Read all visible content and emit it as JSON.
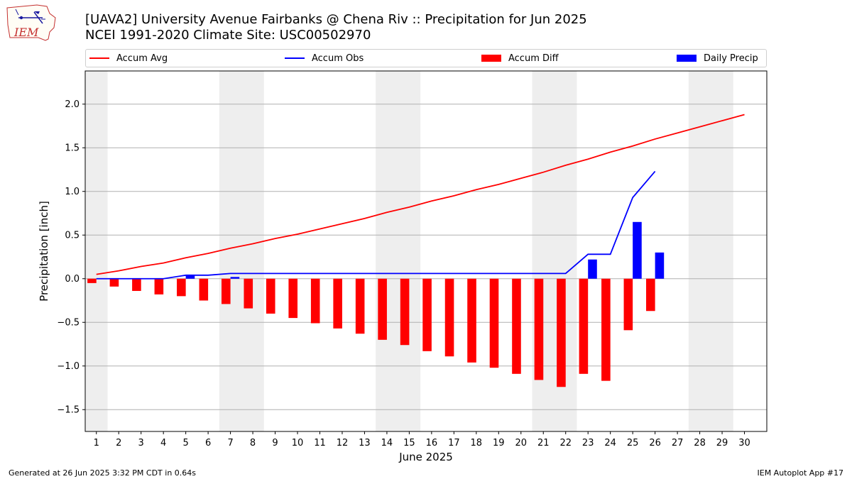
{
  "header": {
    "title_line1": "[UAVA2] University Avenue Fairbanks @ Chena Riv :: Precipitation for Jun 2025",
    "title_line2": "NCEI 1991-2020 Climate Site: USC00502970"
  },
  "logo": {
    "text": "IEM"
  },
  "legend": {
    "items": [
      {
        "label": "Accum Avg",
        "kind": "line",
        "color": "#ff0000"
      },
      {
        "label": "Accum Obs",
        "kind": "line",
        "color": "#0000ff"
      },
      {
        "label": "Accum Diff",
        "kind": "box",
        "color": "#ff0000"
      },
      {
        "label": "Daily Precip",
        "kind": "box",
        "color": "#0000ff"
      }
    ]
  },
  "footer": {
    "left": "Generated at 26 Jun 2025 3:32 PM CDT in 0.64s",
    "right": "IEM Autoplot App #17"
  },
  "chart_data": {
    "type": "bar",
    "xlabel": "June 2025",
    "ylabel": "Precipitation [inch]",
    "categories": [
      "1",
      "2",
      "3",
      "4",
      "5",
      "6",
      "7",
      "8",
      "9",
      "10",
      "11",
      "12",
      "13",
      "14",
      "15",
      "16",
      "17",
      "18",
      "19",
      "20",
      "21",
      "22",
      "23",
      "24",
      "25",
      "26",
      "27",
      "28",
      "29",
      "30"
    ],
    "ylim": [
      -1.75,
      2.38
    ],
    "yticks": [
      -1.5,
      -1.0,
      -0.5,
      0.0,
      0.5,
      1.0,
      1.5,
      2.0
    ],
    "ytick_labels": [
      "−1.5",
      "−1.0",
      "−0.5",
      "0.0",
      "0.5",
      "1.0",
      "1.5",
      "2.0"
    ],
    "grid": "horizontal",
    "weekend_shading": [
      [
        1,
        1
      ],
      [
        7,
        8
      ],
      [
        14,
        15
      ],
      [
        21,
        22
      ],
      [
        28,
        29
      ]
    ],
    "series": [
      {
        "name": "Accum Avg",
        "type": "line",
        "color": "#ff0000",
        "x": [
          1,
          2,
          3,
          4,
          5,
          6,
          7,
          8,
          9,
          10,
          11,
          12,
          13,
          14,
          15,
          16,
          17,
          18,
          19,
          20,
          21,
          22,
          23,
          24,
          25,
          26,
          27,
          28,
          29,
          30
        ],
        "values": [
          0.05,
          0.09,
          0.14,
          0.18,
          0.24,
          0.29,
          0.35,
          0.4,
          0.46,
          0.51,
          0.57,
          0.63,
          0.69,
          0.76,
          0.82,
          0.89,
          0.95,
          1.02,
          1.08,
          1.15,
          1.22,
          1.3,
          1.37,
          1.45,
          1.52,
          1.6,
          1.67,
          1.74,
          1.81,
          1.88
        ]
      },
      {
        "name": "Accum Obs",
        "type": "line",
        "color": "#0000ff",
        "x": [
          1,
          2,
          3,
          4,
          5,
          6,
          7,
          8,
          9,
          10,
          11,
          12,
          13,
          14,
          15,
          16,
          17,
          18,
          19,
          20,
          21,
          22,
          23,
          24,
          25,
          26
        ],
        "values": [
          0.0,
          0.0,
          0.0,
          0.0,
          0.04,
          0.04,
          0.06,
          0.06,
          0.06,
          0.06,
          0.06,
          0.06,
          0.06,
          0.06,
          0.06,
          0.06,
          0.06,
          0.06,
          0.06,
          0.06,
          0.06,
          0.06,
          0.28,
          0.28,
          0.93,
          1.23
        ]
      },
      {
        "name": "Accum Diff",
        "type": "bar",
        "color": "#ff0000",
        "x": [
          1,
          2,
          3,
          4,
          5,
          6,
          7,
          8,
          9,
          10,
          11,
          12,
          13,
          14,
          15,
          16,
          17,
          18,
          19,
          20,
          21,
          22,
          23,
          24,
          25,
          26
        ],
        "values": [
          -0.05,
          -0.09,
          -0.14,
          -0.18,
          -0.2,
          -0.25,
          -0.29,
          -0.34,
          -0.4,
          -0.45,
          -0.51,
          -0.57,
          -0.63,
          -0.7,
          -0.76,
          -0.83,
          -0.89,
          -0.96,
          -1.02,
          -1.09,
          -1.16,
          -1.24,
          -1.09,
          -1.17,
          -0.59,
          -0.37
        ]
      },
      {
        "name": "Daily Precip",
        "type": "bar",
        "color": "#0000ff",
        "x": [
          1,
          2,
          3,
          4,
          5,
          6,
          7,
          8,
          9,
          10,
          11,
          12,
          13,
          14,
          15,
          16,
          17,
          18,
          19,
          20,
          21,
          22,
          23,
          24,
          25,
          26
        ],
        "values": [
          0,
          0,
          0,
          0,
          0.04,
          0,
          0.02,
          0,
          0,
          0,
          0,
          0,
          0,
          0,
          0,
          0,
          0,
          0,
          0,
          0,
          0,
          0,
          0.22,
          0,
          0.65,
          0.3
        ]
      }
    ]
  }
}
